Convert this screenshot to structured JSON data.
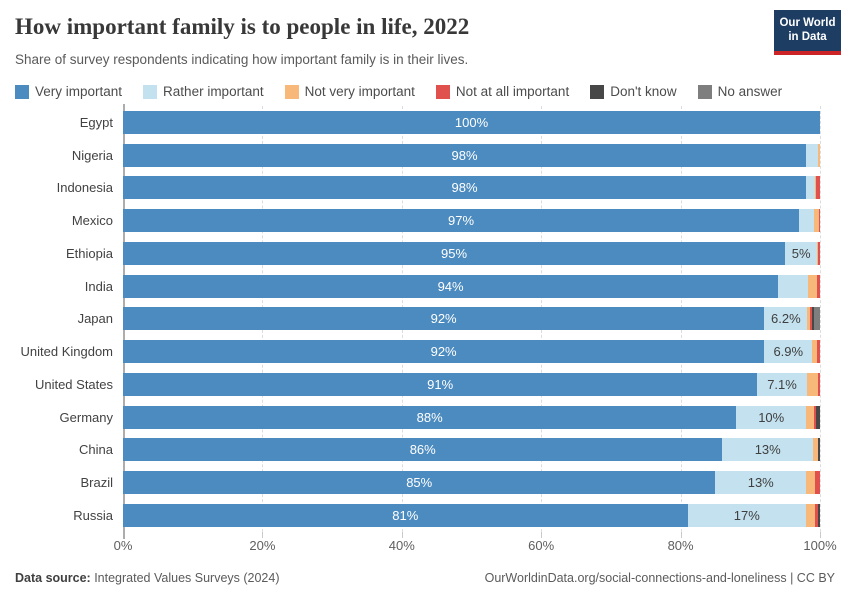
{
  "header": {
    "title": "How important family is to people in life, 2022",
    "subtitle": "Share of survey respondents indicating how important family is in their lives.",
    "logo": {
      "line1": "Our World",
      "line2": "in Data",
      "bg": "#1d3d63",
      "accent": "#cc2427"
    }
  },
  "legend": [
    {
      "label": "Very important",
      "color": "#4c8bbf"
    },
    {
      "label": "Rather important",
      "color": "#c3e1ee"
    },
    {
      "label": "Not very important",
      "color": "#f8b879"
    },
    {
      "label": "Not at all important",
      "color": "#e0504d"
    },
    {
      "label": "Don't know",
      "color": "#474747"
    },
    {
      "label": "No answer",
      "color": "#7e7e7e"
    }
  ],
  "chart_data": {
    "type": "bar",
    "stacked": true,
    "orientation": "horizontal",
    "title": "How important family is to people in life, 2022",
    "xlabel": "",
    "ylabel": "",
    "xlim": [
      0,
      100
    ],
    "grid": "vertical-dashed",
    "legend_position": "top",
    "series_keys": [
      "Very important",
      "Rather important",
      "Not very important",
      "Not at all important",
      "Don't know",
      "No answer"
    ],
    "colors": {
      "Very important": "#4c8bbf",
      "Rather important": "#c3e1ee",
      "Not very important": "#f8b879",
      "Not at all important": "#e0504d",
      "Don't know": "#474747",
      "No answer": "#7e7e7e"
    },
    "categories": [
      "Egypt",
      "Nigeria",
      "Indonesia",
      "Mexico",
      "Ethiopia",
      "India",
      "Japan",
      "United Kingdom",
      "United States",
      "Germany",
      "China",
      "Brazil",
      "Russia"
    ],
    "rows": [
      {
        "country": "Egypt",
        "values": [
          100,
          0,
          0,
          0,
          0,
          0
        ],
        "label_very": "100%",
        "label_rather": ""
      },
      {
        "country": "Nigeria",
        "values": [
          98,
          1.7,
          0.3,
          0,
          0,
          0
        ],
        "label_very": "98%",
        "label_rather": ""
      },
      {
        "country": "Indonesia",
        "values": [
          98,
          1.3,
          0.2,
          0.5,
          0,
          0
        ],
        "label_very": "98%",
        "label_rather": ""
      },
      {
        "country": "Mexico",
        "values": [
          97,
          2.2,
          0.6,
          0.2,
          0,
          0
        ],
        "label_very": "97%",
        "label_rather": ""
      },
      {
        "country": "Ethiopia",
        "values": [
          95,
          4.6,
          0.1,
          0.3,
          0,
          0
        ],
        "label_very": "95%",
        "label_rather": "5%"
      },
      {
        "country": "India",
        "values": [
          94,
          4.3,
          1.2,
          0.5,
          0,
          0
        ],
        "label_very": "94%",
        "label_rather": ""
      },
      {
        "country": "Japan",
        "values": [
          92,
          6.2,
          0.4,
          0.2,
          0.4,
          0.8
        ],
        "label_very": "92%",
        "label_rather": "6.2%"
      },
      {
        "country": "United Kingdom",
        "values": [
          92,
          6.9,
          0.7,
          0.4,
          0,
          0
        ],
        "label_very": "92%",
        "label_rather": "6.9%"
      },
      {
        "country": "United States",
        "values": [
          91,
          7.1,
          1.6,
          0.3,
          0,
          0
        ],
        "label_very": "91%",
        "label_rather": "7.1%"
      },
      {
        "country": "Germany",
        "values": [
          88,
          10,
          1.2,
          0.2,
          0.6,
          0
        ],
        "label_very": "88%",
        "label_rather": "10%"
      },
      {
        "country": "China",
        "values": [
          86,
          13,
          0.7,
          0,
          0.3,
          0
        ],
        "label_very": "86%",
        "label_rather": "13%"
      },
      {
        "country": "Brazil",
        "values": [
          85,
          13,
          1.3,
          0.7,
          0,
          0
        ],
        "label_very": "85%",
        "label_rather": "13%"
      },
      {
        "country": "Russia",
        "values": [
          81,
          17,
          1.3,
          0.4,
          0.3,
          0
        ],
        "label_very": "81%",
        "label_rather": "17%"
      }
    ],
    "x_axis": {
      "ticks": [
        "0%",
        "20%",
        "40%",
        "60%",
        "80%",
        "100%"
      ],
      "tick_values": [
        0,
        20,
        40,
        60,
        80,
        100
      ]
    }
  },
  "footer": {
    "source_label": "Data source:",
    "source_value": " Integrated Values Surveys (2024)",
    "right": "OurWorldinData.org/social-connections-and-loneliness | CC BY"
  }
}
